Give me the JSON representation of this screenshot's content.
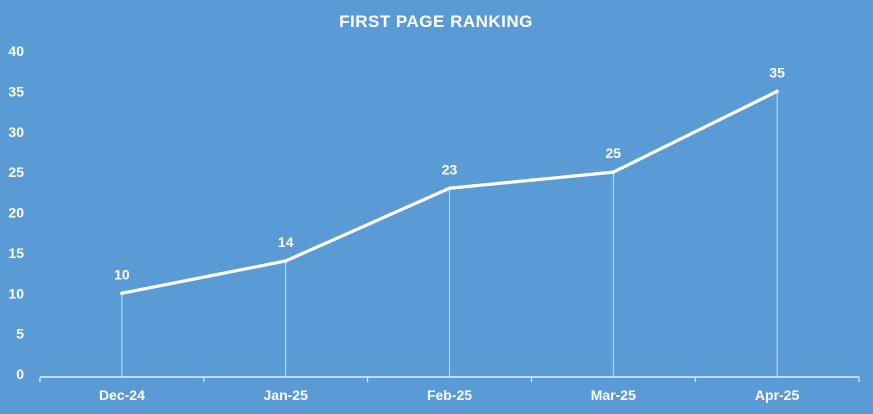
{
  "colors": {
    "background": "#5b9bd5",
    "line": "#ffffff",
    "text": "#ffffff",
    "axis": "#ffffff"
  },
  "chart_data": {
    "type": "line",
    "title": "FIRST PAGE RANKING",
    "xlabel": "",
    "ylabel": "",
    "categories": [
      "Dec-24",
      "Jan-25",
      "Feb-25",
      "Mar-25",
      "Apr-25"
    ],
    "series": [
      {
        "values": [
          10,
          14,
          23,
          25,
          35
        ]
      }
    ],
    "ylim": [
      0,
      40
    ],
    "yticks": [
      "0",
      "5",
      "10",
      "15",
      "20",
      "25",
      "30",
      "35",
      "40"
    ],
    "data_labels": [
      "10",
      "14",
      "23",
      "25",
      "35"
    ],
    "drop_lines": true,
    "grid": false,
    "legend": "none"
  }
}
